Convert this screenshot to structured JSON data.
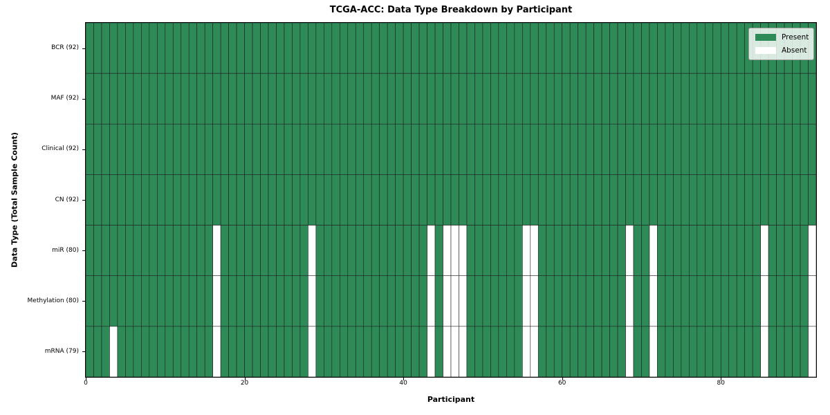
{
  "chart_data": {
    "type": "heatmap",
    "title": "TCGA-ACC: Data Type Breakdown by Participant",
    "xlabel": "Participant",
    "ylabel": "Data Type (Total Sample Count)",
    "x_ticks": [
      0,
      20,
      40,
      60,
      80
    ],
    "xlim": [
      0,
      92
    ],
    "n_participants": 92,
    "cell_values": {
      "present": 1,
      "absent": 0
    },
    "rows": [
      {
        "label": "BCR (92)",
        "data_type": "BCR",
        "present_count": 92,
        "absent_participants": []
      },
      {
        "label": "MAF (92)",
        "data_type": "MAF",
        "present_count": 92,
        "absent_participants": []
      },
      {
        "label": "Clinical (92)",
        "data_type": "Clinical",
        "present_count": 92,
        "absent_participants": []
      },
      {
        "label": "CN (92)",
        "data_type": "CN",
        "present_count": 92,
        "absent_participants": []
      },
      {
        "label": "miR (80)",
        "data_type": "miR",
        "present_count": 80,
        "absent_participants": [
          16,
          28,
          43,
          45,
          46,
          47,
          55,
          56,
          68,
          71,
          85,
          91
        ]
      },
      {
        "label": "Methylation (80)",
        "data_type": "Methylation",
        "present_count": 80,
        "absent_participants": [
          16,
          28,
          43,
          45,
          46,
          47,
          55,
          56,
          68,
          71,
          85,
          91
        ]
      },
      {
        "label": "mRNA (79)",
        "data_type": "mRNA",
        "present_count": 79,
        "absent_participants": [
          3,
          16,
          28,
          43,
          45,
          46,
          47,
          55,
          56,
          68,
          71,
          85,
          91
        ]
      }
    ],
    "legend": {
      "position": "upper right",
      "entries": [
        {
          "label": "Present",
          "color": "#2e8b57"
        },
        {
          "label": "Absent",
          "color": "#ffffff"
        }
      ]
    },
    "colors": {
      "present": "#2e8b57",
      "absent": "#ffffff",
      "grid": "#1f1f1f",
      "spine": "#000000"
    }
  }
}
